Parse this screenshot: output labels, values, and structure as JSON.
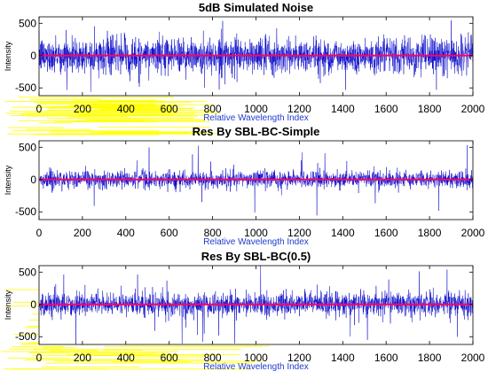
{
  "colors": {
    "signal": "#0000c8",
    "baseline": "#ff0066",
    "xlabel_text": "#1f3ad0",
    "axis": "#000000",
    "artifact_yellow": "#ffff00"
  },
  "chart_data": [
    {
      "type": "line",
      "title": "5dB Simulated Noise",
      "xlabel": "Relative Wavelength Index",
      "ylabel": "Intensity",
      "xlim": [
        0,
        2000
      ],
      "ylim": [
        -620,
        600
      ],
      "x_ticks": [
        0,
        200,
        400,
        600,
        800,
        1000,
        1200,
        1400,
        1600,
        1800,
        2000
      ],
      "y_ticks": [
        500,
        0,
        -500
      ],
      "grid": false,
      "series": [
        {
          "role": "signal",
          "n_points": 2000,
          "amplitude_typical": 300,
          "amplitude_peak": 560
        },
        {
          "role": "baseline",
          "values": [
            0,
            0
          ]
        }
      ]
    },
    {
      "type": "line",
      "title": "Res By SBL-BC-Simple",
      "xlabel": "Relative Wavelength Index",
      "ylabel": "Intensity",
      "xlim": [
        0,
        2000
      ],
      "ylim": [
        -620,
        600
      ],
      "x_ticks": [
        0,
        200,
        400,
        600,
        800,
        1000,
        1200,
        1400,
        1600,
        1800,
        2000
      ],
      "y_ticks": [
        500,
        0,
        -500
      ],
      "grid": false,
      "series": [
        {
          "role": "signal",
          "n_points": 2000,
          "amplitude_typical": 150,
          "amplitude_peak": 560
        },
        {
          "role": "baseline",
          "values": [
            0,
            0
          ]
        }
      ]
    },
    {
      "type": "line",
      "title": "Res By SBL-BC(0.5)",
      "xlabel": "Relative Wavelength Index",
      "ylabel": "Intensity",
      "xlim": [
        0,
        2000
      ],
      "ylim": [
        -620,
        600
      ],
      "x_ticks": [
        0,
        200,
        400,
        600,
        800,
        1000,
        1200,
        1400,
        1600,
        1800,
        2000
      ],
      "y_ticks": [
        500,
        0,
        -500
      ],
      "grid": false,
      "series": [
        {
          "role": "signal",
          "n_points": 2000,
          "amplitude_typical": 200,
          "amplitude_peak": 620
        },
        {
          "role": "baseline",
          "values": [
            0,
            0
          ]
        }
      ]
    }
  ]
}
